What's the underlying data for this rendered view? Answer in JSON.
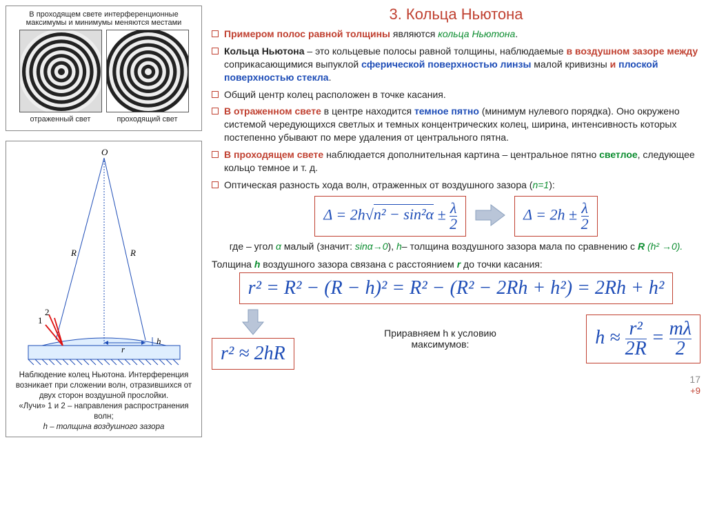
{
  "title": "3. Кольца Ньютона",
  "fig1": {
    "caption_top": "В проходящем свете интерференционные максимумы и минимумы меняются местами",
    "label_left": "отраженный свет",
    "label_right": "проходящий свет",
    "ring_count": 11
  },
  "fig2": {
    "caption": "Наблюдение колец Ньютона. Интерференция возникает при сложении волн, отразившихся от двух сторон воздушной прослойки.",
    "rays_line": "«Лучи» 1 и 2 – направления распространения волн;",
    "h_line": "h – толщина воздушного зазора",
    "labels": {
      "O": "O",
      "R": "R",
      "r": "r",
      "h": "h",
      "one": "1",
      "two": "2"
    },
    "stroke": "#1e4db7",
    "ray_color": "#d11",
    "lens_fill": "#dfeefe"
  },
  "bullets": [
    {
      "html": "<span class='bold red'>Примером полос равной толщины</span> являются <span class='green'>кольца Ньютона</span>."
    },
    {
      "html": "<span class='bold'>Кольца Ньютона</span> – это кольцевые полосы равной толщины, наблюдаемые <span class='bold red'>в воздушном зазоре между</span> соприкасающимися выпуклой <span class='bold blue'>сферической поверхностью линзы</span> малой кривизны <span class='bold red'>и</span> <span class='bold blue'>плоской поверхностью стекла</span>."
    },
    {
      "html": "Общий центр колец расположен в точке касания."
    },
    {
      "html": "<span class='bold red'>В отраженном свете</span> в центре находится <span class='bold blue'>темное пятно</span> (минимум нулевого порядка). Оно окружено системой чередующихся светлых и темных концентрических колец, ширина, интенсивность которых постепенно убывают по мере удаления от центрального пятна."
    },
    {
      "html": "<span class='bold red'>В проходящем свете</span> наблюдается дополнительная картина – центральное пятно <span class='bold' style='color:#0a8c2e'>светлое</span>, следующее кольцо темное и т. д."
    },
    {
      "html": "Оптическая разность хода волн, отраженных от воздушного зазора (<span class='green'>n=1</span>):"
    }
  ],
  "eq": {
    "delta_full": "Δ = 2h√(n² − sin²α) ± λ⁄2",
    "delta_simpl": "Δ = 2h ± λ⁄2",
    "cond_text_1": "где – угол ",
    "cond_alpha": "α",
    "cond_text_2": " малый (значит: ",
    "sin_limit": "sinα→0",
    "cond_text_3": "), ",
    "h_sym": "h",
    "cond_text_4": "– толщина воздушного зазора мала по сравнению с ",
    "R_sym": "R",
    "h2_limit": " (h² →0).",
    "thickness_intro_pre": "Толщина ",
    "thickness_intro_h": "h",
    "thickness_intro_mid": " воздушного зазора связана с расстоянием ",
    "thickness_intro_r": "r",
    "thickness_intro_post": " до точки касания:",
    "r2_full": "r² = R² − (R − h)² = R² − (R² − 2Rh + h²) = 2Rh + h²",
    "r2_approx": "r² ≈ 2hR",
    "equate_text": "Приравняем h к условию максимумов:",
    "h_approx": "h ≈ r²⁄(2R) = mλ⁄2"
  },
  "arrow": {
    "fill": "#b9c5d8",
    "stroke": "#8aa0be"
  },
  "page_number": "17",
  "plus9": "+9",
  "colors": {
    "red": "#c04030",
    "blue": "#1e4db7",
    "green": "#0a8c2e"
  }
}
